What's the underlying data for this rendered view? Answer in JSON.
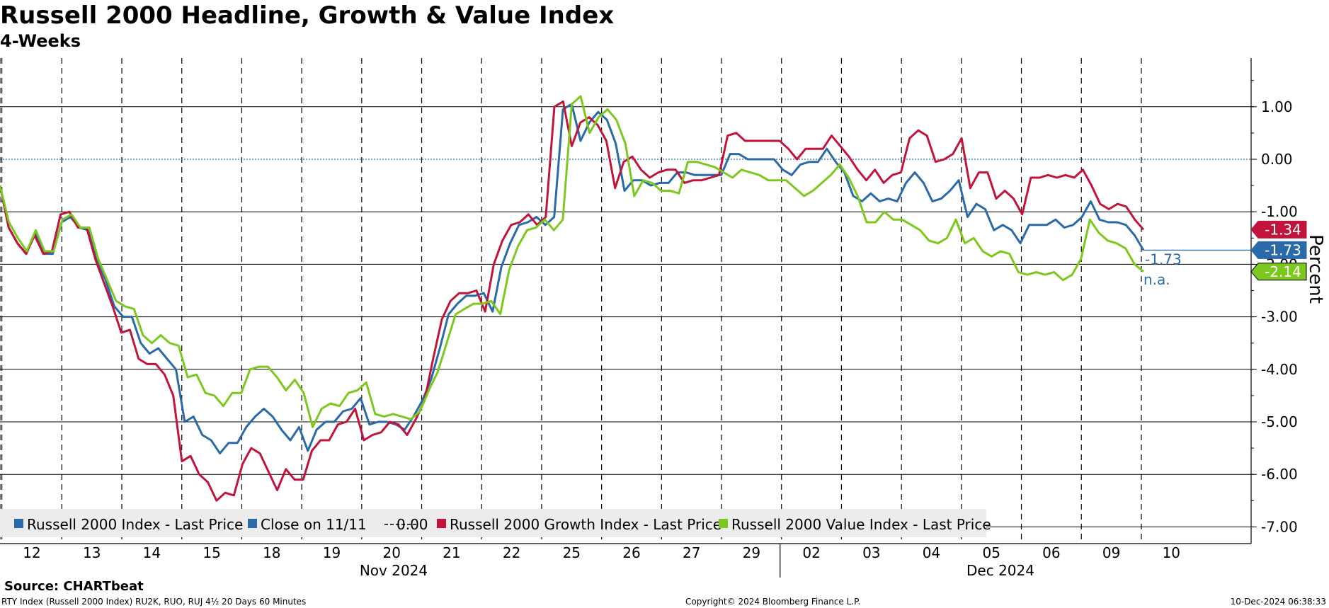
{
  "colors": {
    "headline": "#2a6aa8",
    "growth": "#c0143c",
    "value": "#7dc81e",
    "zero_line": "#2a6aa8"
  },
  "chart_data": {
    "type": "line",
    "title": "Russell 2000 Headline, Growth & Value Index",
    "subtitle": "4-Weeks",
    "ylabel": "Percent",
    "ylim": [
      -7.4,
      1.9
    ],
    "y_ticks": [
      "1.00",
      "0.00",
      "-1.00",
      "-2.00",
      "-3.00",
      "-4.00",
      "-5.00",
      "-6.00",
      "-7.00"
    ],
    "x_tick_labels": [
      "12",
      "13",
      "14",
      "15",
      "18",
      "19",
      "20",
      "21",
      "22",
      "25",
      "26",
      "27",
      "29",
      "02",
      "03",
      "04",
      "05",
      "06",
      "09",
      "10"
    ],
    "month_labels": [
      "Nov 2024",
      "Dec 2024"
    ],
    "reference_line": {
      "label": "Close on 11/11",
      "value": 0.0
    },
    "series": [
      {
        "name": "Russell 2000 Index - Last Price",
        "last": "-1.73",
        "note": "-1.73",
        "values": [
          -0.5,
          -1.3,
          -1.6,
          -1.8,
          -1.4,
          -1.8,
          -1.8,
          -1.2,
          -1.1,
          -1.3,
          -1.35,
          -1.9,
          -2.3,
          -2.8,
          -3.0,
          -3.0,
          -3.5,
          -3.7,
          -3.6,
          -3.8,
          -4.0,
          -5.0,
          -4.9,
          -5.25,
          -5.35,
          -5.6,
          -5.4,
          -5.4,
          -5.1,
          -4.9,
          -4.75,
          -4.9,
          -5.15,
          -5.35,
          -5.1,
          -5.55,
          -5.15,
          -5.0,
          -5.0,
          -4.8,
          -4.75,
          -4.55,
          -5.05,
          -5.0,
          -5.0,
          -5.05,
          -5.15,
          -4.9,
          -4.6,
          -4.2,
          -3.6,
          -2.95,
          -2.75,
          -2.6,
          -2.6,
          -2.55,
          -2.9,
          -2.05,
          -1.6,
          -1.25,
          -1.2,
          -1.1,
          -1.25,
          -1.1,
          0.95,
          1.05,
          0.35,
          0.7,
          0.9,
          0.75,
          0.3,
          -0.6,
          -0.4,
          -0.4,
          -0.5,
          -0.45,
          -0.45,
          -0.25,
          -0.25,
          -0.3,
          -0.3,
          -0.3,
          -0.3,
          0.1,
          0.1,
          0.0,
          0.0,
          0.0,
          0.0,
          -0.2,
          -0.3,
          -0.1,
          -0.05,
          -0.05,
          0.2,
          -0.05,
          -0.25,
          -0.7,
          -0.8,
          -0.65,
          -0.8,
          -0.75,
          -0.8,
          -0.45,
          -0.25,
          -0.45,
          -0.8,
          -0.75,
          -0.6,
          -0.4,
          -1.1,
          -0.85,
          -0.95,
          -1.35,
          -1.25,
          -1.35,
          -1.6,
          -1.25,
          -1.25,
          -1.25,
          -1.15,
          -1.3,
          -1.25,
          -1.1,
          -0.8,
          -1.15,
          -1.2,
          -1.2,
          -1.25,
          -1.45,
          -1.73
        ]
      },
      {
        "name": "Russell 2000 Growth Index - Last Price",
        "last": "-1.34",
        "values": [
          -0.5,
          -1.3,
          -1.6,
          -1.8,
          -1.45,
          -1.8,
          -1.75,
          -1.05,
          -1.0,
          -1.3,
          -1.3,
          -1.9,
          -2.35,
          -2.8,
          -3.3,
          -3.25,
          -3.8,
          -3.9,
          -3.9,
          -4.1,
          -4.5,
          -5.75,
          -5.65,
          -6.0,
          -6.15,
          -6.5,
          -6.35,
          -6.4,
          -5.8,
          -5.5,
          -5.6,
          -5.95,
          -6.3,
          -5.9,
          -6.1,
          -6.1,
          -5.55,
          -5.35,
          -5.35,
          -5.05,
          -5.0,
          -4.75,
          -5.35,
          -5.25,
          -5.2,
          -5.0,
          -5.05,
          -5.25,
          -4.95,
          -4.6,
          -3.8,
          -3.05,
          -2.7,
          -2.55,
          -2.55,
          -2.5,
          -2.9,
          -2.0,
          -1.55,
          -1.25,
          -1.2,
          -1.05,
          -1.25,
          -1.1,
          1.0,
          1.1,
          0.25,
          0.7,
          0.8,
          0.65,
          0.35,
          -0.55,
          -0.05,
          0.05,
          -0.2,
          -0.35,
          -0.25,
          -0.2,
          -0.2,
          -0.45,
          -0.4,
          -0.4,
          -0.35,
          -0.3,
          0.45,
          0.5,
          0.35,
          0.35,
          0.35,
          0.35,
          0.35,
          0.2,
          0.0,
          0.2,
          0.2,
          0.2,
          0.45,
          0.25,
          0.05,
          -0.2,
          -0.4,
          -0.2,
          -0.45,
          -0.3,
          -0.25,
          0.4,
          0.55,
          0.45,
          -0.05,
          0.0,
          0.1,
          0.4,
          -0.55,
          -0.25,
          -0.25,
          -0.75,
          -0.6,
          -0.75,
          -1.05,
          -0.35,
          -0.35,
          -0.3,
          -0.35,
          -0.3,
          -0.35,
          -0.2,
          -0.5,
          -0.85,
          -0.95,
          -0.85,
          -0.9,
          -1.15,
          -1.34
        ]
      },
      {
        "name": "Russell 2000 Value Index - Last Price",
        "last": "-2.14",
        "note": "n.a.",
        "values": [
          -0.5,
          -1.2,
          -1.5,
          -1.75,
          -1.35,
          -1.75,
          -1.75,
          -1.15,
          -1.05,
          -1.3,
          -1.3,
          -1.9,
          -2.3,
          -2.7,
          -2.8,
          -2.85,
          -3.35,
          -3.5,
          -3.35,
          -3.5,
          -3.55,
          -4.15,
          -4.1,
          -4.45,
          -4.5,
          -4.7,
          -4.45,
          -4.45,
          -4.0,
          -3.95,
          -3.95,
          -4.15,
          -4.4,
          -4.2,
          -4.45,
          -5.1,
          -4.75,
          -4.65,
          -4.7,
          -4.45,
          -4.4,
          -4.25,
          -4.85,
          -4.9,
          -4.85,
          -4.9,
          -4.95,
          -4.8,
          -4.4,
          -4.05,
          -3.5,
          -2.95,
          -2.85,
          -2.75,
          -2.75,
          -2.7,
          -2.95,
          -2.1,
          -1.65,
          -1.35,
          -1.3,
          -1.15,
          -1.35,
          -1.15,
          1.05,
          1.2,
          0.5,
          0.8,
          0.95,
          0.75,
          0.3,
          -0.7,
          -0.4,
          -0.45,
          -0.6,
          -0.6,
          -0.65,
          -0.05,
          -0.05,
          -0.1,
          -0.15,
          -0.25,
          -0.35,
          -0.2,
          -0.25,
          -0.3,
          -0.4,
          -0.4,
          -0.4,
          -0.55,
          -0.7,
          -0.6,
          -0.45,
          -0.3,
          -0.1,
          -0.35,
          -0.7,
          -1.2,
          -1.2,
          -1.0,
          -1.15,
          -1.15,
          -1.25,
          -1.35,
          -1.55,
          -1.6,
          -1.5,
          -1.15,
          -1.6,
          -1.5,
          -1.75,
          -1.85,
          -1.75,
          -1.8,
          -2.15,
          -2.2,
          -2.15,
          -2.2,
          -2.15,
          -2.3,
          -2.2,
          -1.9,
          -1.15,
          -1.4,
          -1.55,
          -1.6,
          -1.7,
          -2.0,
          -2.14
        ]
      }
    ],
    "legend_labels": [
      "Russell 2000 Index - Last Price",
      "Close on 11/11",
      "0.00",
      "Russell 2000 Growth Index - Last Price",
      "Russell 2000 Value Index - Last Price"
    ],
    "legend_position": "bottom-left"
  },
  "footer": {
    "source": "Source: CHARTbeat",
    "left": "RTY Index (Russell 2000 Index) RU2K, RUO, RUJ 4½ 20 Days 60 Minutes",
    "middle": "Copyright© 2024 Bloomberg Finance L.P.",
    "right": "10-Dec-2024 06:38:33"
  }
}
